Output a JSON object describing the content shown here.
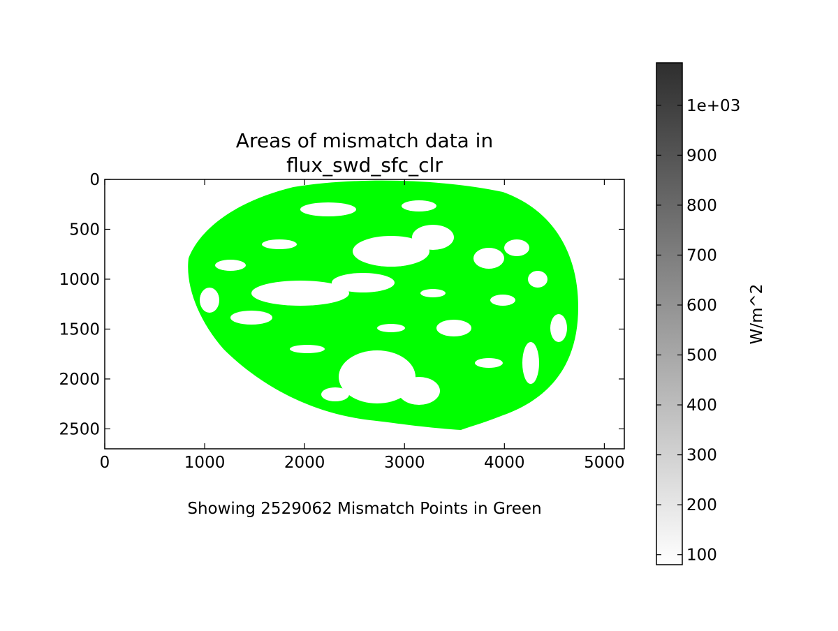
{
  "chart_data": {
    "type": "heatmap",
    "title_line1": "Areas of mismatch data in",
    "title_line2": "flux_swd_sfc_clr",
    "caption": "Showing 2529062 Mismatch Points in Green",
    "xlabel": "",
    "ylabel": "",
    "xlim": [
      0,
      5200
    ],
    "ylim": [
      2700,
      0
    ],
    "y_inverted": true,
    "x_ticks": [
      0,
      1000,
      2000,
      3000,
      4000,
      5000
    ],
    "x_tick_labels": [
      "0",
      "1000",
      "2000",
      "3000",
      "4000",
      "5000"
    ],
    "y_ticks": [
      0,
      500,
      1000,
      1500,
      2000,
      2500
    ],
    "y_tick_labels": [
      "0",
      "500",
      "1000",
      "1500",
      "2000",
      "2500"
    ],
    "mismatch_color": "#00ff00",
    "mismatch_count": 2529062,
    "grid": false,
    "colorbar": {
      "label": "W/m^2",
      "range": [
        80,
        1085
      ],
      "colormap": "Greys",
      "ticks": [
        100,
        200,
        300,
        400,
        500,
        600,
        700,
        800,
        900,
        1000
      ],
      "tick_labels": [
        "100",
        "200",
        "300",
        "400",
        "500",
        "600",
        "700",
        "800",
        "900",
        "1e+03"
      ]
    }
  }
}
